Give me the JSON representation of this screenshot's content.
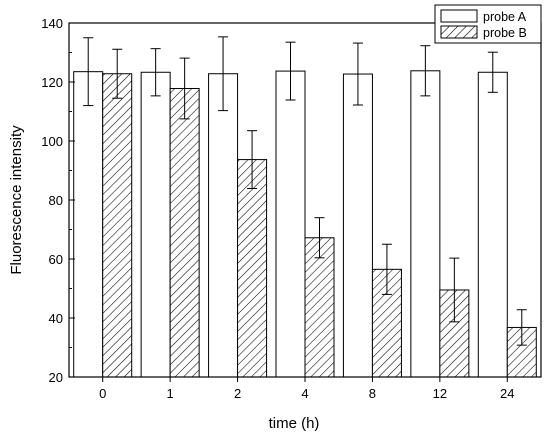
{
  "chart_data": {
    "type": "bar",
    "xlabel": "time  (h)",
    "ylabel": "Fluorescence intensity",
    "categories": [
      "0",
      "1",
      "2",
      "4",
      "8",
      "12",
      "24"
    ],
    "ylim": [
      20,
      140
    ],
    "yticks": [
      20,
      40,
      60,
      80,
      100,
      120,
      140
    ],
    "legend_position": "top-right",
    "series": [
      {
        "name": "probe A",
        "fill": "none",
        "values": [
          123.5,
          123.3,
          122.8,
          123.7,
          122.7,
          123.8,
          123.3
        ],
        "err_upper": [
          11.5,
          8.0,
          12.5,
          9.8,
          10.5,
          8.5,
          6.8
        ],
        "err_lower": [
          11.5,
          8.0,
          12.5,
          9.8,
          10.5,
          8.5,
          6.8
        ]
      },
      {
        "name": "probe B",
        "fill": "hatched",
        "values": [
          122.8,
          117.8,
          93.7,
          67.2,
          56.5,
          49.5,
          36.8
        ],
        "err_upper": [
          8.3,
          10.3,
          9.8,
          6.8,
          8.5,
          10.8,
          6.0
        ],
        "err_lower": [
          8.3,
          10.3,
          9.8,
          6.8,
          8.5,
          10.8,
          6.0
        ]
      }
    ],
    "grid": false
  },
  "colors": {
    "axis": "#000000",
    "bar_stroke": "#000000",
    "bar_fill": "#ffffff"
  }
}
